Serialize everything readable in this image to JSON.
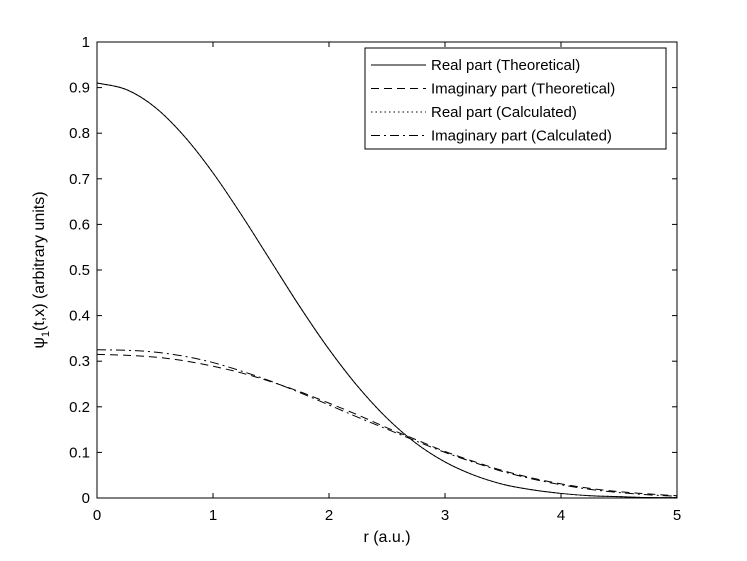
{
  "chart_data": {
    "type": "line",
    "xlabel": "r (a.u.)",
    "ylabel": "ψ1(t,x) (arbitrary units)",
    "ylabel_parts": {
      "main": "ψ",
      "sub": "1",
      "rest": "(t,x) (arbitrary units)"
    },
    "xlim": [
      0,
      5
    ],
    "ylim": [
      0,
      1
    ],
    "xticks": [
      "0",
      "1",
      "2",
      "3",
      "4",
      "5"
    ],
    "yticks": [
      "0",
      "0.1",
      "0.2",
      "0.3",
      "0.4",
      "0.5",
      "0.6",
      "0.7",
      "0.8",
      "0.9",
      "1"
    ],
    "grid": false,
    "legend_position": "top-right",
    "series": [
      {
        "name": "Real part (Theoretical)",
        "style": "solid",
        "x": [
          0,
          0.25,
          0.5,
          0.75,
          1.0,
          1.25,
          1.5,
          1.75,
          2.0,
          2.25,
          2.5,
          2.75,
          3.0,
          3.25,
          3.5,
          3.75,
          4.0,
          4.25,
          4.5,
          4.75,
          5.0
        ],
        "y": [
          0.91,
          0.896,
          0.857,
          0.794,
          0.713,
          0.619,
          0.519,
          0.419,
          0.326,
          0.244,
          0.175,
          0.12,
          0.079,
          0.05,
          0.03,
          0.018,
          0.01,
          0.005,
          0.003,
          0.001,
          0.001
        ]
      },
      {
        "name": "Imaginary part (Theoretical)",
        "style": "dashed",
        "x": [
          0,
          0.25,
          0.5,
          0.75,
          1.0,
          1.25,
          1.5,
          1.75,
          2.0,
          2.25,
          2.5,
          2.75,
          3.0,
          3.25,
          3.5,
          3.75,
          4.0,
          4.25,
          4.5,
          4.75,
          5.0
        ],
        "y": [
          0.315,
          0.313,
          0.309,
          0.301,
          0.289,
          0.274,
          0.255,
          0.233,
          0.208,
          0.182,
          0.154,
          0.128,
          0.102,
          0.08,
          0.06,
          0.044,
          0.031,
          0.021,
          0.014,
          0.009,
          0.005
        ]
      },
      {
        "name": "Real part (Calculated)",
        "style": "dotted",
        "x": [
          0,
          0.25,
          0.5,
          0.75,
          1.0,
          1.25,
          1.5,
          1.75,
          2.0,
          2.25,
          2.5,
          2.75,
          3.0,
          3.25,
          3.5,
          3.75,
          4.0,
          4.25,
          4.5,
          4.75,
          5.0
        ],
        "y": [
          0.91,
          0.896,
          0.857,
          0.794,
          0.713,
          0.619,
          0.519,
          0.419,
          0.326,
          0.244,
          0.175,
          0.12,
          0.079,
          0.05,
          0.03,
          0.018,
          0.01,
          0.005,
          0.003,
          0.001,
          0.001
        ]
      },
      {
        "name": "Imaginary part (Calculated)",
        "style": "dashdot",
        "x": [
          0,
          0.25,
          0.5,
          0.75,
          1.0,
          1.25,
          1.5,
          1.75,
          2.0,
          2.25,
          2.5,
          2.75,
          3.0,
          3.25,
          3.5,
          3.75,
          4.0,
          4.25,
          4.5,
          4.75,
          5.0
        ],
        "y": [
          0.325,
          0.324,
          0.32,
          0.311,
          0.297,
          0.278,
          0.256,
          0.231,
          0.204,
          0.177,
          0.151,
          0.125,
          0.1,
          0.078,
          0.058,
          0.042,
          0.029,
          0.019,
          0.012,
          0.007,
          0.004
        ]
      }
    ]
  }
}
